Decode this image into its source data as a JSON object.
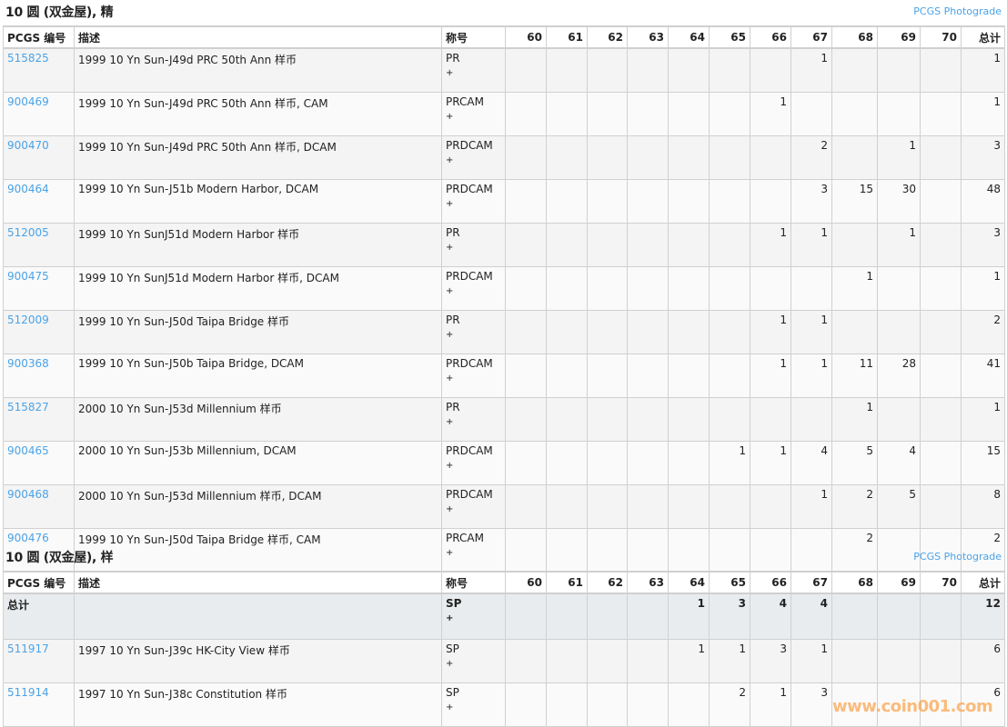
{
  "grades": [
    "60",
    "61",
    "62",
    "63",
    "64",
    "65",
    "66",
    "67",
    "68",
    "69",
    "70"
  ],
  "headers": {
    "pcgs_no": "PCGS 编号",
    "description": "描述",
    "designation": "称号",
    "total": "总计"
  },
  "sections": [
    {
      "title": "10 圆 (双金屋), 精",
      "link": "PCGS Photograde",
      "rows": [
        {
          "pcgs": "515825",
          "desc": "1999 10 Yn Sun-J49d PRC 50th Ann 样币",
          "desig": "PR",
          "plus": "+",
          "counts": [
            "",
            "",
            "",
            "",
            "",
            "",
            "",
            "1",
            "",
            "",
            ""
          ],
          "total": "1"
        },
        {
          "pcgs": "900469",
          "desc": "1999 10 Yn Sun-J49d PRC 50th Ann 样币, CAM",
          "desig": "PRCAM",
          "plus": "+",
          "counts": [
            "",
            "",
            "",
            "",
            "",
            "",
            "1",
            "",
            "",
            "",
            ""
          ],
          "total": "1"
        },
        {
          "pcgs": "900470",
          "desc": "1999 10 Yn Sun-J49d PRC 50th Ann 样币, DCAM",
          "desig": "PRDCAM",
          "plus": "+",
          "counts": [
            "",
            "",
            "",
            "",
            "",
            "",
            "",
            "2",
            "",
            "1",
            ""
          ],
          "total": "3"
        },
        {
          "pcgs": "900464",
          "desc": "1999 10 Yn Sun-J51b Modern Harbor, DCAM",
          "desig": "PRDCAM",
          "plus": "+",
          "counts": [
            "",
            "",
            "",
            "",
            "",
            "",
            "",
            "3",
            "15",
            "30",
            ""
          ],
          "total": "48"
        },
        {
          "pcgs": "512005",
          "desc": "1999 10 Yn SunJ51d Modern Harbor 样币",
          "desig": "PR",
          "plus": "+",
          "counts": [
            "",
            "",
            "",
            "",
            "",
            "",
            "1",
            "1",
            "",
            "1",
            ""
          ],
          "total": "3"
        },
        {
          "pcgs": "900475",
          "desc": "1999 10 Yn SunJ51d Modern Harbor 样币, DCAM",
          "desig": "PRDCAM",
          "plus": "+",
          "counts": [
            "",
            "",
            "",
            "",
            "",
            "",
            "",
            "",
            "1",
            "",
            ""
          ],
          "total": "1"
        },
        {
          "pcgs": "512009",
          "desc": "1999 10 Yn Sun-J50d Taipa Bridge 样币",
          "desig": "PR",
          "plus": "+",
          "counts": [
            "",
            "",
            "",
            "",
            "",
            "",
            "1",
            "1",
            "",
            "",
            ""
          ],
          "total": "2"
        },
        {
          "pcgs": "900368",
          "desc": "1999 10 Yn Sun-J50b Taipa Bridge, DCAM",
          "desig": "PRDCAM",
          "plus": "+",
          "counts": [
            "",
            "",
            "",
            "",
            "",
            "",
            "1",
            "1",
            "11",
            "28",
            ""
          ],
          "total": "41"
        },
        {
          "pcgs": "515827",
          "desc": "2000 10 Yn Sun-J53d Millennium 样币",
          "desig": "PR",
          "plus": "+",
          "counts": [
            "",
            "",
            "",
            "",
            "",
            "",
            "",
            "",
            "1",
            "",
            ""
          ],
          "total": "1"
        },
        {
          "pcgs": "900465",
          "desc": "2000 10 Yn Sun-J53b Millennium, DCAM",
          "desig": "PRDCAM",
          "plus": "+",
          "counts": [
            "",
            "",
            "",
            "",
            "",
            "1",
            "1",
            "4",
            "5",
            "4",
            ""
          ],
          "total": "15"
        },
        {
          "pcgs": "900468",
          "desc": "2000 10 Yn Sun-J53d Millennium 样币, DCAM",
          "desig": "PRDCAM",
          "plus": "+",
          "counts": [
            "",
            "",
            "",
            "",
            "",
            "",
            "",
            "1",
            "2",
            "5",
            ""
          ],
          "total": "8"
        },
        {
          "pcgs": "900476",
          "desc": "1999 10 Yn Sun-J50d Taipa Bridge 样币, CAM",
          "desig": "PRCAM",
          "plus": "+",
          "counts": [
            "",
            "",
            "",
            "",
            "",
            "",
            "",
            "",
            "2",
            "",
            ""
          ],
          "total": "2"
        }
      ]
    },
    {
      "title": "10 圆 (双金屋), 样",
      "link": "PCGS Photograde",
      "total_row": {
        "label": "总计",
        "desig": "SP",
        "plus": "+",
        "counts": [
          "",
          "",
          "",
          "",
          "1",
          "3",
          "4",
          "4",
          "",
          "",
          ""
        ],
        "total": "12"
      },
      "rows": [
        {
          "pcgs": "511917",
          "desc": "1997 10 Yn Sun-J39c HK-City View 样币",
          "desig": "SP",
          "plus": "+",
          "counts": [
            "",
            "",
            "",
            "",
            "1",
            "1",
            "3",
            "1",
            "",
            "",
            ""
          ],
          "total": "6"
        },
        {
          "pcgs": "511914",
          "desc": "1997 10 Yn Sun-J38c Constitution 样币",
          "desig": "SP",
          "plus": "+",
          "counts": [
            "",
            "",
            "",
            "",
            "",
            "2",
            "1",
            "3",
            "",
            "",
            ""
          ],
          "total": "6"
        }
      ]
    }
  ],
  "watermark": "www.coin001.com",
  "colors": {
    "link": "#4aa3e8",
    "total_row_bg": "#e8ecef"
  }
}
